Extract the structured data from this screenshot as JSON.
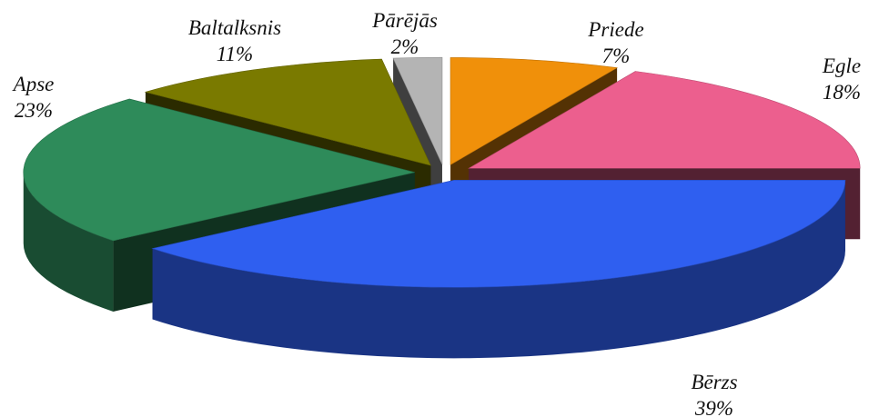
{
  "chart_data": {
    "type": "pie3d",
    "categories": [
      "Priede",
      "Egle",
      "Bērzs",
      "Apse",
      "Baltalksnis",
      "Pārējās"
    ],
    "values": [
      7,
      18,
      39,
      23,
      11,
      2
    ],
    "value_labels": [
      "7%",
      "18%",
      "39%",
      "23%",
      "11%",
      "2%"
    ],
    "colors": [
      "#f0900a",
      "#ec5f8e",
      "#2f5ff0",
      "#2e8b5a",
      "#7a7a00",
      "#b4b4b4"
    ]
  }
}
